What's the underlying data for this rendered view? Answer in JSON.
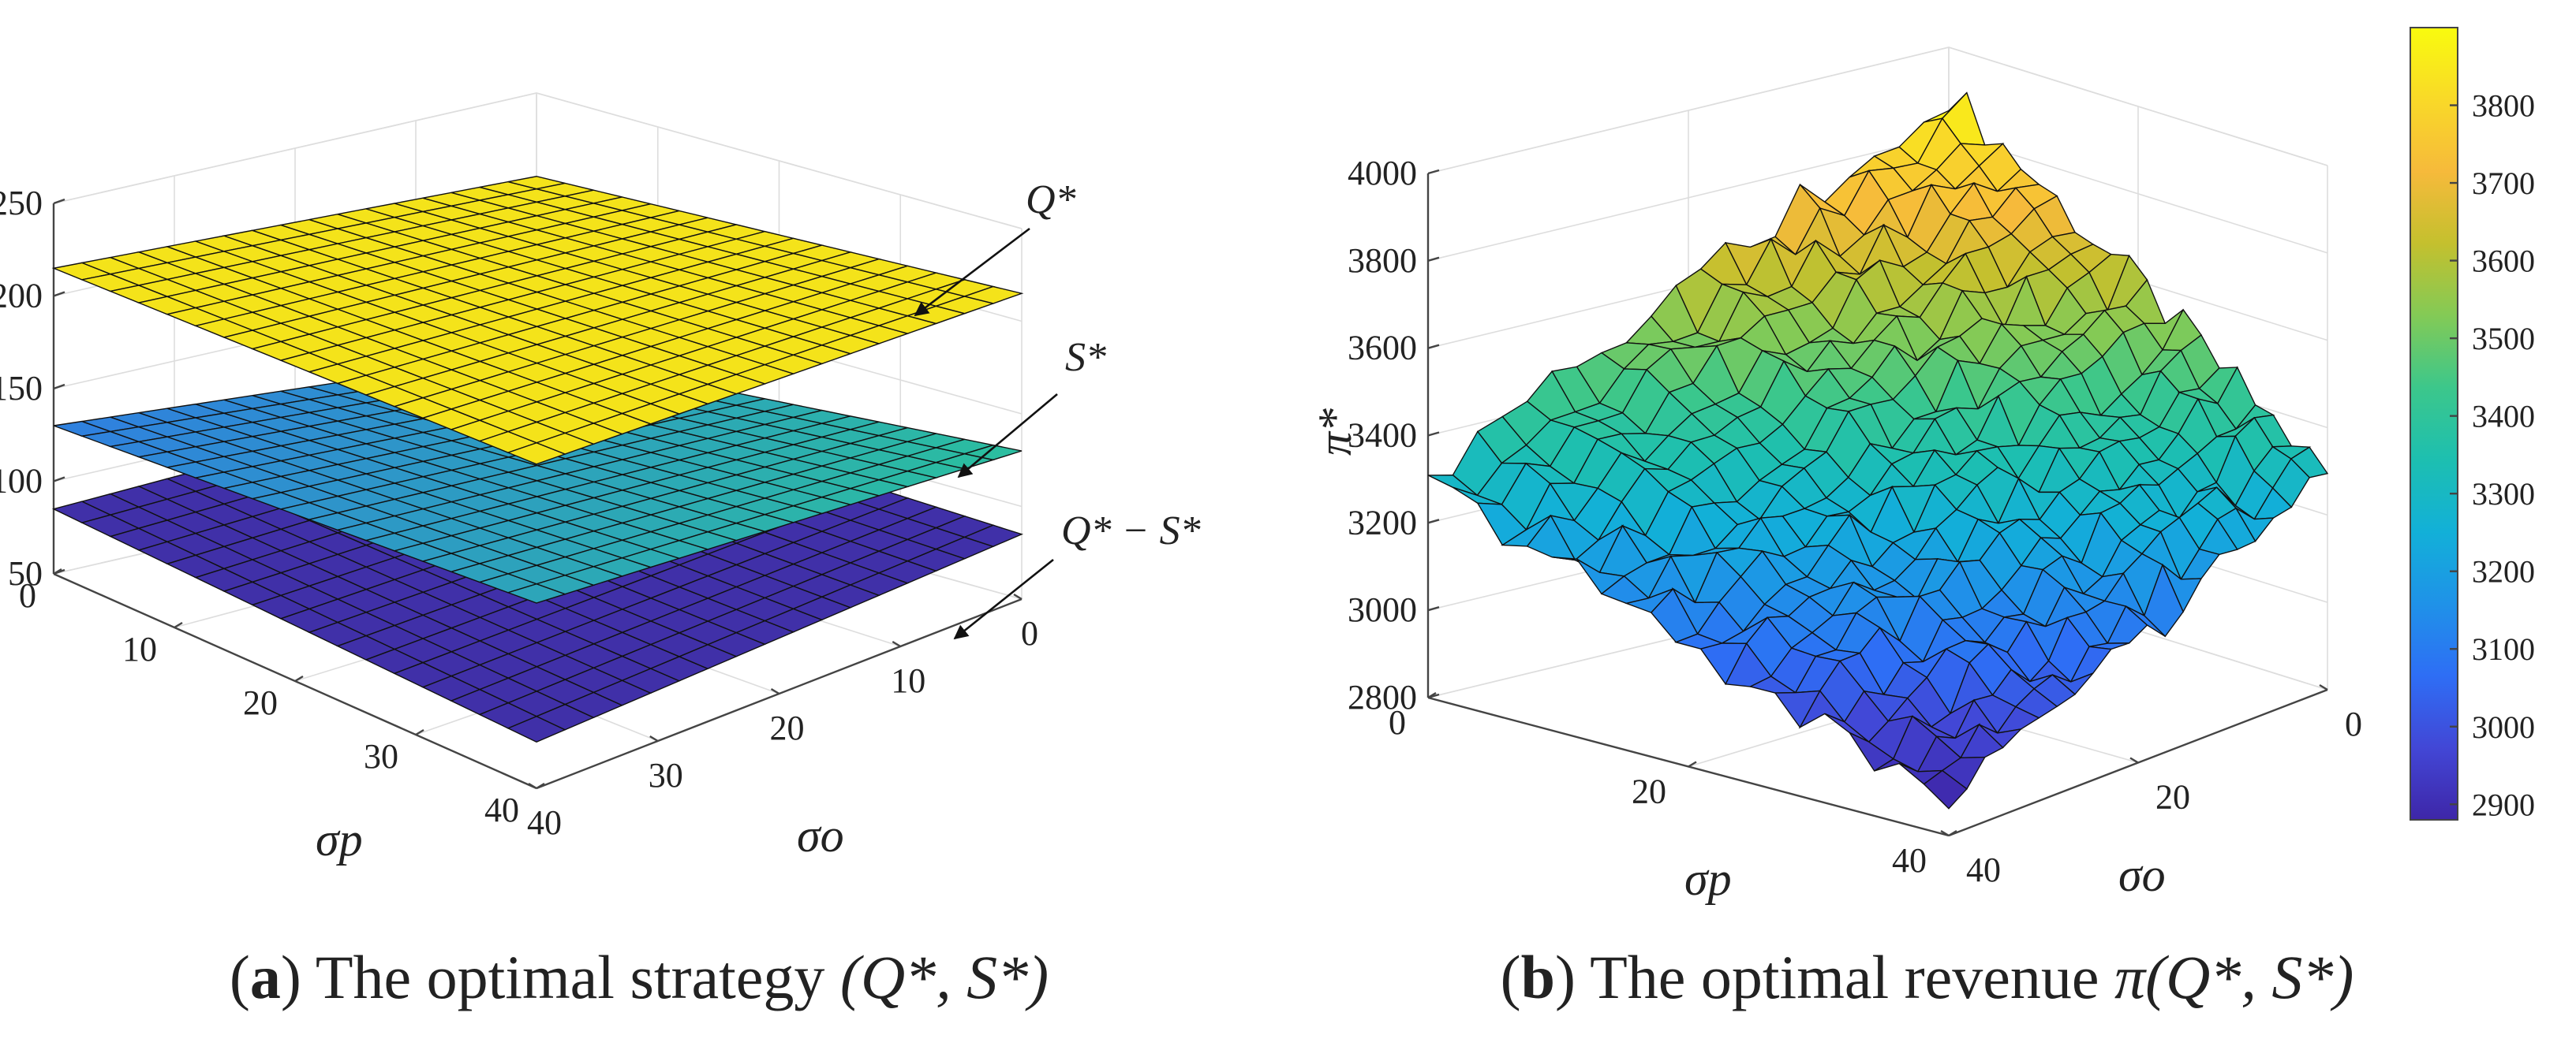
{
  "chart_data": [
    {
      "id": "a",
      "type": "surface3d",
      "caption": {
        "letter": "a",
        "prefix": "(",
        "mid": ") The optimal strategy ",
        "math": "(Q*, S*)"
      },
      "xlabel": "σp",
      "ylabel": "σo",
      "xlim": [
        0,
        40
      ],
      "ylim": [
        0,
        40
      ],
      "zlim": [
        50,
        250
      ],
      "x_ticks": [
        "0",
        "10",
        "20",
        "30",
        "40"
      ],
      "y_ticks": [
        "0",
        "10",
        "20",
        "30",
        "40"
      ],
      "z_ticks": [
        "50",
        "100",
        "150",
        "200",
        "250"
      ],
      "grid_size": 17,
      "series": [
        {
          "name": "Q*",
          "label": "Q*",
          "z_at_corners": {
            "p0_o0": 205,
            "p40_o0": 215,
            "p0_o40": 215,
            "p40_o40": 225
          },
          "color": "#f4e31a"
        },
        {
          "name": "S*",
          "label": "S*",
          "z_at_corners": {
            "p0_o0": 110,
            "p40_o0": 130,
            "p0_o40": 130,
            "p40_o40": 150
          },
          "colors": [
            "#2f7fe0",
            "#2bbf9e"
          ]
        },
        {
          "name": "Q*-S*",
          "label": "Q* − S*",
          "z_at_corners": {
            "p0_o0": 95,
            "p40_o0": 85,
            "p0_o40": 85,
            "p40_o40": 75
          },
          "color": "#4030a8"
        }
      ]
    },
    {
      "id": "b",
      "type": "surface3d",
      "caption": {
        "letter": "b",
        "prefix": "(",
        "mid": ") The optimal revenue ",
        "math": "π(Q*, S*)"
      },
      "xlabel": "σp",
      "ylabel": "σo",
      "zlabel": "π*",
      "xlim": [
        0,
        40
      ],
      "ylim": [
        0,
        40
      ],
      "zlim": [
        2800,
        4000
      ],
      "x_ticks": [
        "0",
        "20",
        "40"
      ],
      "y_ticks": [
        "0",
        "20",
        "40"
      ],
      "z_ticks": [
        "2800",
        "3000",
        "3200",
        "3400",
        "3600",
        "3800",
        "4000"
      ],
      "z_peak": 3900,
      "z_low": 2870,
      "z_side": 3290,
      "grid_size": 21,
      "colorbar": {
        "min": 2880,
        "max": 3900,
        "ticks": [
          "2900",
          "3000",
          "3100",
          "3200",
          "3300",
          "3400",
          "3500",
          "3600",
          "3700",
          "3800"
        ],
        "colors": [
          "#3e26a8",
          "#4247d6",
          "#2e6ef5",
          "#1f92e8",
          "#12b0d8",
          "#1dbfb0",
          "#3cc78b",
          "#83ca56",
          "#c4c02e",
          "#f6ba3b",
          "#f9d928",
          "#f9fb0e"
        ]
      }
    }
  ]
}
